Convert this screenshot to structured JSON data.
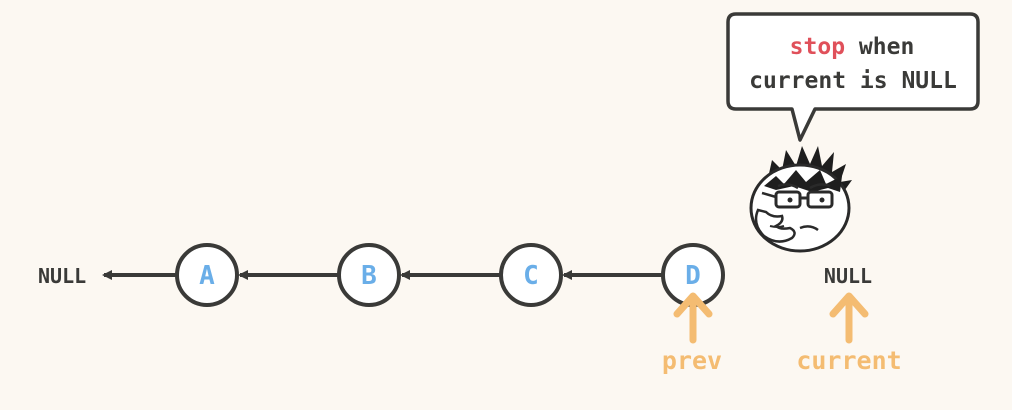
{
  "left_null": "NULL",
  "right_null": "NULL",
  "nodes": [
    "A",
    "B",
    "C",
    "D"
  ],
  "pointers": {
    "prev": "prev",
    "current": "current"
  },
  "bubble": {
    "keyword": "stop",
    "line1_rest": " when",
    "line2": "current is NULL"
  },
  "colors": {
    "background": "#fcf8f2",
    "ink": "#3a3a38",
    "node_fill": "#ffffff",
    "node_text": "#6aaee8",
    "pointer": "#f4bc72",
    "keyword": "#e0505a"
  },
  "character": "thinking-nerd-meme-face"
}
